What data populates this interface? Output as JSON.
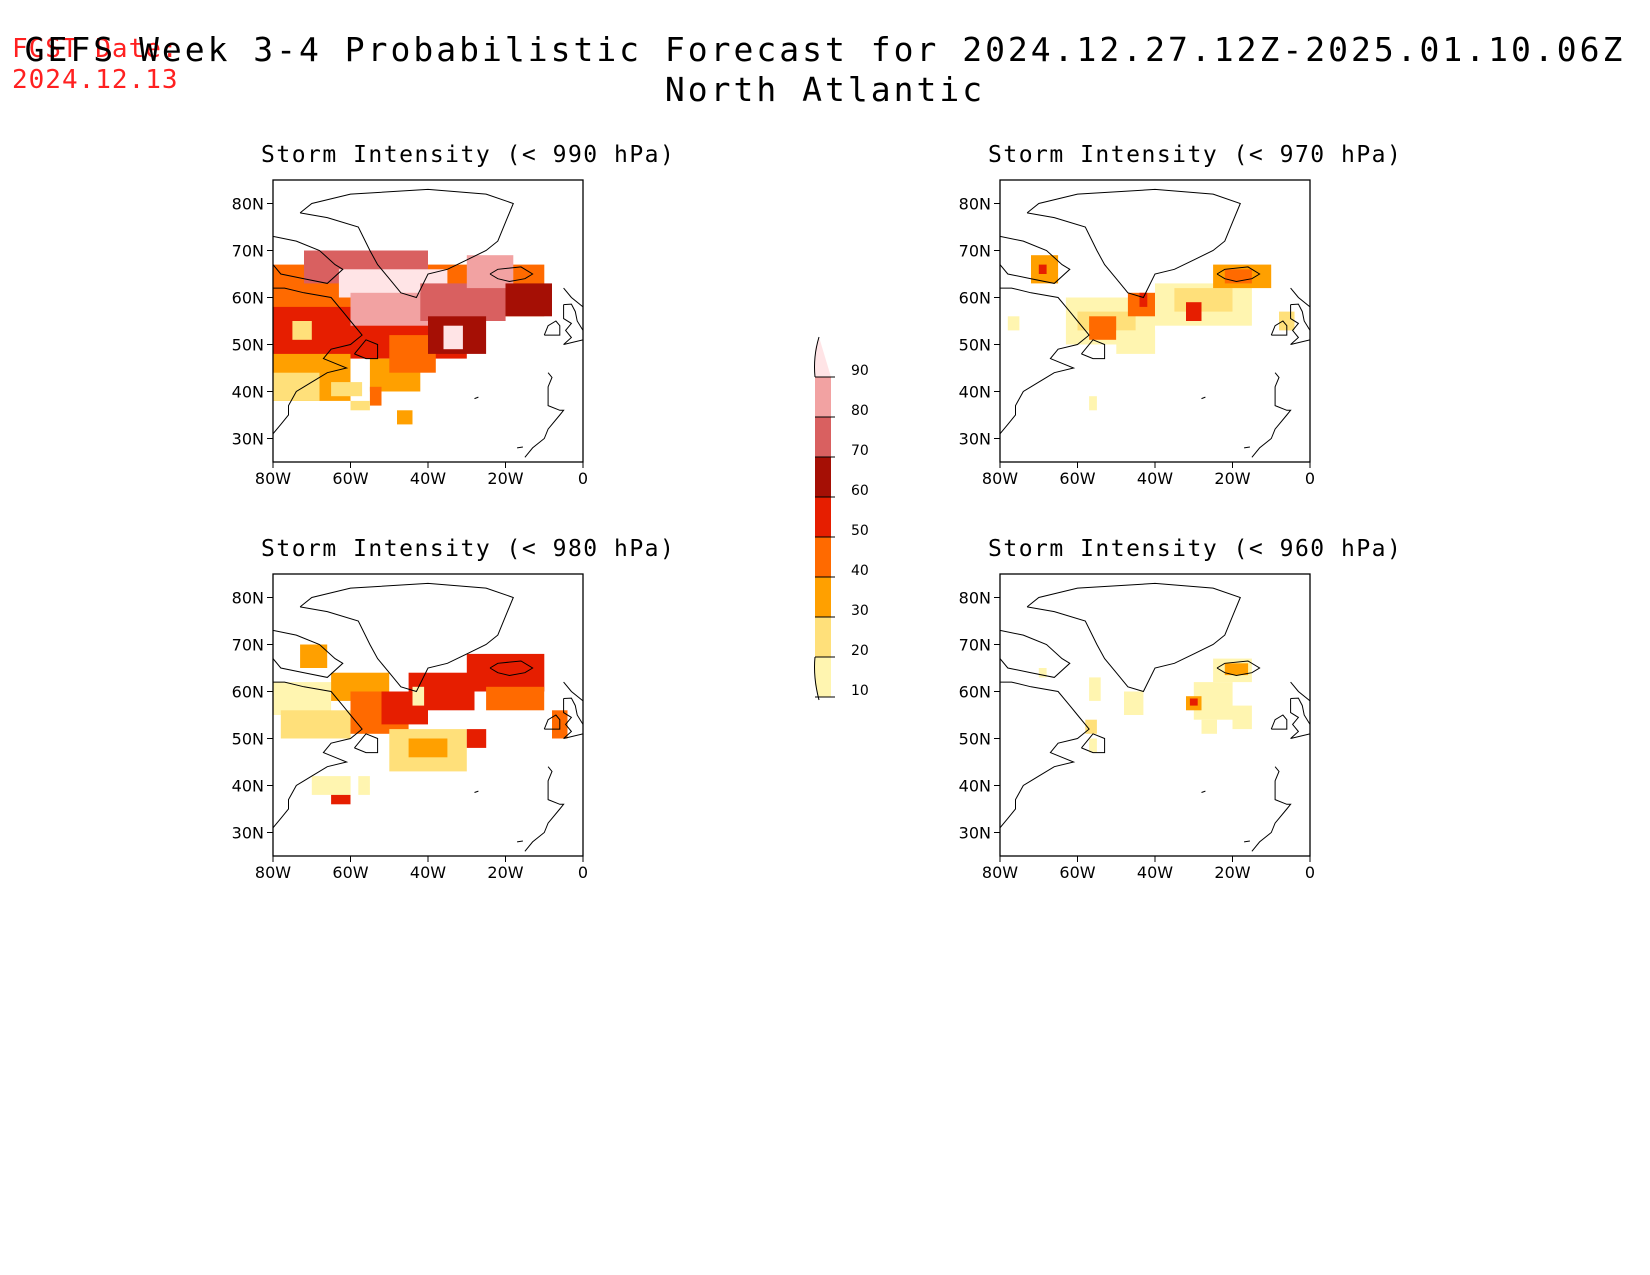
{
  "header": {
    "fcst_label": "FCST Date:",
    "fcst_date": "2024.12.13",
    "title": "GEFS Week 3-4 Probabilistic Forecast for 2024.12.27.12Z-2025.01.10.06Z",
    "subtitle": "North Atlantic"
  },
  "axes": {
    "lat_ticks": [
      "80N",
      "70N",
      "60N",
      "50N",
      "40N",
      "30N"
    ],
    "lat_values": [
      80,
      70,
      60,
      50,
      40,
      30
    ],
    "lon_ticks": [
      "80W",
      "60W",
      "40W",
      "20W",
      "0"
    ],
    "lon_values": [
      -80,
      -60,
      -40,
      -20,
      0
    ],
    "lat_range": [
      25,
      85
    ],
    "lon_range": [
      -80,
      0
    ]
  },
  "panels": [
    {
      "id": "p990",
      "title": "Storm Intensity (< 990 hPa)",
      "threshold_hpa": 990
    },
    {
      "id": "p970",
      "title": "Storm Intensity (< 970 hPa)",
      "threshold_hpa": 970
    },
    {
      "id": "p980",
      "title": "Storm Intensity (< 980 hPa)",
      "threshold_hpa": 980
    },
    {
      "id": "p960",
      "title": "Storm Intensity (< 960 hPa)",
      "threshold_hpa": 960
    }
  ],
  "colorbar": {
    "labels": [
      "90",
      "80",
      "70",
      "60",
      "50",
      "40",
      "30",
      "20",
      "10"
    ],
    "levels": [
      10,
      20,
      30,
      40,
      50,
      60,
      70,
      80,
      90
    ],
    "colors": [
      "#fff5b0",
      "#ffe07a",
      "#ffa000",
      "#ff6a00",
      "#e61e00",
      "#a50f05",
      "#d96060",
      "#f2a2a2",
      "#ffe4e6"
    ]
  }
}
